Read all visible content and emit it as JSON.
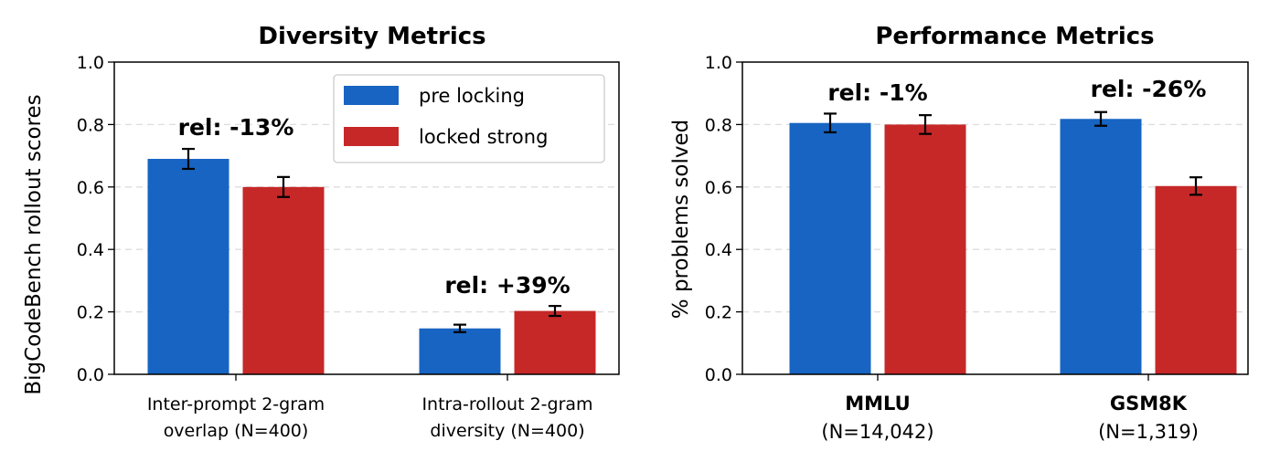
{
  "colors": {
    "pre": "#1764c2",
    "locked": "#c62828",
    "grid": "#dddddd",
    "errorbar": "#000000"
  },
  "legend": {
    "placement": "top-right",
    "items": [
      "pre locking",
      "locked strong"
    ]
  },
  "chart_data": [
    {
      "type": "bar",
      "title": "Diversity Metrics",
      "ylabel": "BigCodeBench rollout scores",
      "ylim": [
        0,
        1
      ],
      "yticks": [
        "0.0",
        "0.2",
        "0.4",
        "0.6",
        "0.8",
        "1.0"
      ],
      "grid": "horizontal dashed",
      "categories": [
        {
          "lines": [
            "Inter-prompt 2-gram",
            "overlap (N=400)"
          ],
          "bold_line": false
        },
        {
          "lines": [
            "Intra-rollout 2-gram",
            "diversity (N=400)"
          ],
          "bold_line": false
        }
      ],
      "series": [
        {
          "name": "pre locking",
          "values": [
            0.69,
            0.147
          ],
          "errors": [
            0.032,
            0.012
          ]
        },
        {
          "name": "locked strong",
          "values": [
            0.6,
            0.203
          ],
          "errors": [
            0.032,
            0.016
          ]
        }
      ],
      "annotations": [
        "rel: -13%",
        "rel: +39%"
      ]
    },
    {
      "type": "bar",
      "title": "Performance Metrics",
      "ylabel": "% problems solved",
      "ylim": [
        0,
        1
      ],
      "yticks": [
        "0.0",
        "0.2",
        "0.4",
        "0.6",
        "0.8",
        "1.0"
      ],
      "grid": "horizontal dashed",
      "categories": [
        {
          "lines": [
            "MMLU",
            "(N=14,042)"
          ],
          "bold_line": true
        },
        {
          "lines": [
            "GSM8K",
            "(N=1,319)"
          ],
          "bold_line": true
        }
      ],
      "series": [
        {
          "name": "pre locking",
          "values": [
            0.805,
            0.818
          ],
          "errors": [
            0.03,
            0.022
          ]
        },
        {
          "name": "locked strong",
          "values": [
            0.8,
            0.603
          ],
          "errors": [
            0.03,
            0.028
          ]
        }
      ],
      "annotations": [
        "rel: -1%",
        "rel: -26%"
      ]
    }
  ]
}
